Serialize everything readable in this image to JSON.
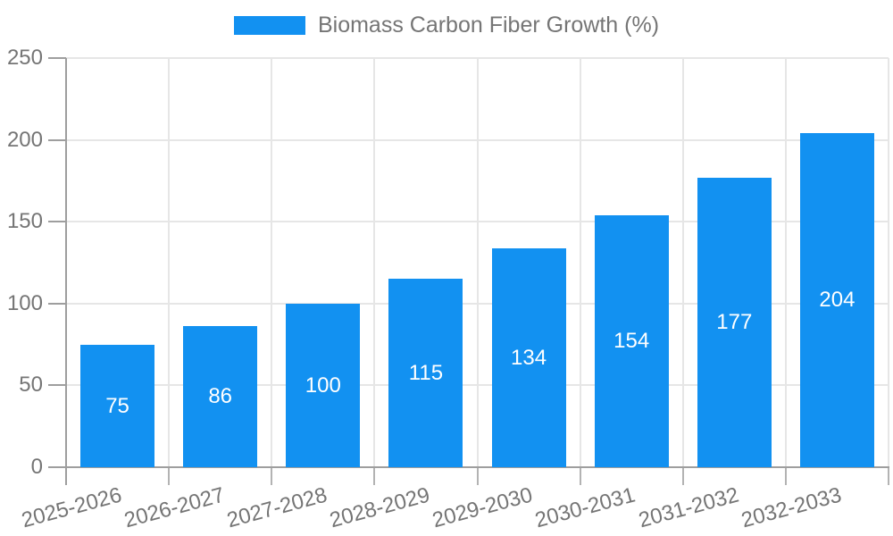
{
  "chart_data": {
    "type": "bar",
    "title": "Biomass Carbon Fiber Growth (%)",
    "categories": [
      "2025-2026",
      "2026-2027",
      "2027-2028",
      "2028-2029",
      "2029-2030",
      "2030-2031",
      "2031-2032",
      "2032-2033"
    ],
    "values": [
      75,
      86,
      100,
      115,
      134,
      154,
      177,
      204
    ],
    "xlabel": "",
    "ylabel": "",
    "ylim": [
      0,
      250
    ],
    "yticks": [
      0,
      50,
      100,
      150,
      200,
      250
    ],
    "grid": true,
    "legend_position": "top-center",
    "bar_labels_inside": true,
    "colors": {
      "bar": "#1291F1",
      "value_label": "#FFFFFF",
      "axis_text": "#757575",
      "grid": "#E6E6E6",
      "axis": "#9E9E9E",
      "tick": "#B3B3B3"
    }
  }
}
